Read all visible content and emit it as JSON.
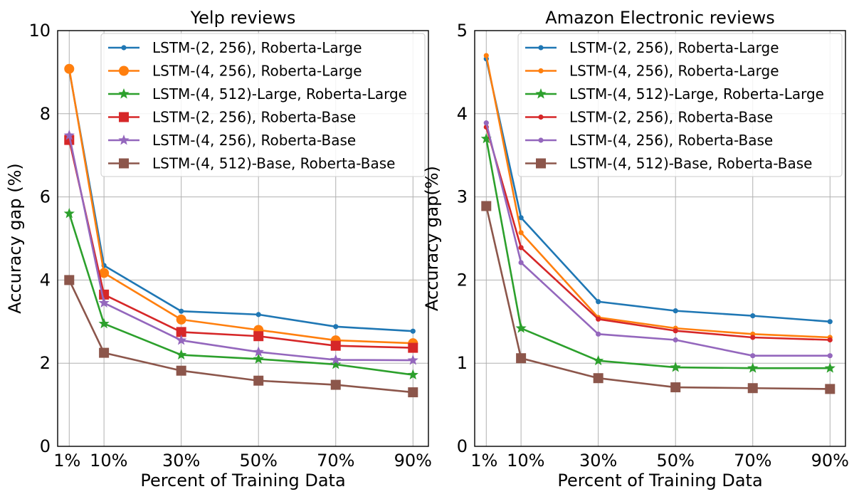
{
  "chart_data": [
    {
      "type": "line",
      "title": "Yelp reviews",
      "xlabel": "Percent of Training Data",
      "ylabel": "Accuracy gap (%)",
      "categories": [
        "1%",
        "10%",
        "30%",
        "50%",
        "70%",
        "90%"
      ],
      "x": [
        1,
        10,
        30,
        50,
        70,
        90
      ],
      "xlim": [
        -2,
        94
      ],
      "ylim": [
        0,
        10
      ],
      "yticks": [
        0,
        2,
        4,
        6,
        8,
        10
      ],
      "ytick_labels": [
        "0",
        "2",
        "4",
        "6",
        "8",
        "10"
      ],
      "grid": true,
      "legend_position": "top-right",
      "series": [
        {
          "name": "LSTM-(2, 256), Roberta-Large",
          "color": "#1f77b4",
          "marker": "circle-small",
          "values": [
            9.05,
            4.35,
            3.25,
            3.17,
            2.88,
            2.77
          ]
        },
        {
          "name": "LSTM-(4, 256), Roberta-Large",
          "color": "#ff7f0e",
          "marker": "circle",
          "values": [
            9.08,
            4.17,
            3.05,
            2.8,
            2.55,
            2.48
          ]
        },
        {
          "name": "LSTM-(4, 512)-Large, Roberta-Large",
          "color": "#2ca02c",
          "marker": "star",
          "values": [
            5.6,
            2.95,
            2.2,
            2.1,
            1.97,
            1.72
          ]
        },
        {
          "name": "LSTM-(2, 256), Roberta-Base",
          "color": "#d62728",
          "marker": "square",
          "values": [
            7.37,
            3.65,
            2.75,
            2.65,
            2.42,
            2.37
          ]
        },
        {
          "name": "LSTM-(4, 256), Roberta-Base",
          "color": "#9467bd",
          "marker": "star",
          "values": [
            7.48,
            3.45,
            2.55,
            2.27,
            2.08,
            2.07
          ]
        },
        {
          "name": "LSTM-(4, 512)-Base, Roberta-Base",
          "color": "#8c564b",
          "marker": "square",
          "values": [
            4.0,
            2.25,
            1.82,
            1.58,
            1.48,
            1.3
          ]
        }
      ]
    },
    {
      "type": "line",
      "title": "Amazon Electronic reviews",
      "xlabel": "Percent of Training Data",
      "ylabel": "Accuracy gap(%)",
      "categories": [
        "1%",
        "10%",
        "30%",
        "50%",
        "70%",
        "90%"
      ],
      "x": [
        1,
        10,
        30,
        50,
        70,
        90
      ],
      "xlim": [
        -2,
        94
      ],
      "ylim": [
        0,
        5
      ],
      "yticks": [
        0,
        1,
        2,
        3,
        4,
        5
      ],
      "ytick_labels": [
        "0",
        "1",
        "2",
        "3",
        "4",
        "5"
      ],
      "grid": true,
      "legend_position": "top-right",
      "series": [
        {
          "name": "LSTM-(2, 256), Roberta-Large",
          "color": "#1f77b4",
          "marker": "circle-small",
          "values": [
            4.66,
            2.75,
            1.74,
            1.63,
            1.57,
            1.5
          ]
        },
        {
          "name": "LSTM-(4, 256), Roberta-Large",
          "color": "#ff7f0e",
          "marker": "circle-small",
          "values": [
            4.7,
            2.57,
            1.55,
            1.42,
            1.35,
            1.31
          ]
        },
        {
          "name": "LSTM-(4, 512)-Large, Roberta-Large",
          "color": "#2ca02c",
          "marker": "star",
          "values": [
            3.7,
            1.42,
            1.03,
            0.95,
            0.94,
            0.94
          ]
        },
        {
          "name": "LSTM-(2, 256), Roberta-Base",
          "color": "#d62728",
          "marker": "circle-small",
          "values": [
            3.84,
            2.39,
            1.53,
            1.39,
            1.31,
            1.28
          ]
        },
        {
          "name": "LSTM-(4, 256), Roberta-Base",
          "color": "#9467bd",
          "marker": "circle-small",
          "values": [
            3.89,
            2.21,
            1.35,
            1.28,
            1.09,
            1.09
          ]
        },
        {
          "name": "LSTM-(4, 512)-Base, Roberta-Base",
          "color": "#8c564b",
          "marker": "square",
          "values": [
            2.89,
            1.06,
            0.82,
            0.71,
            0.7,
            0.69
          ]
        }
      ]
    }
  ]
}
